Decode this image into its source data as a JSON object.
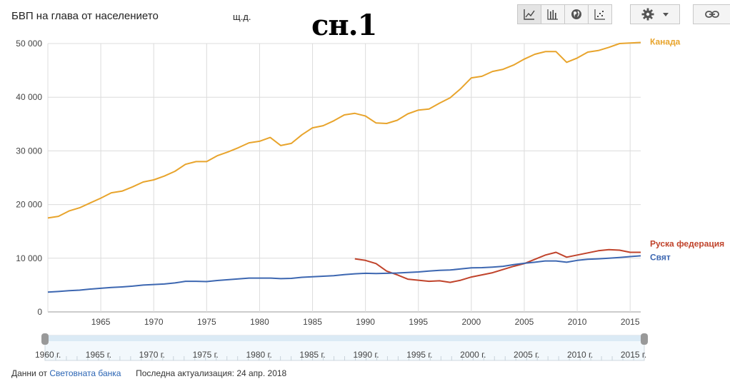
{
  "header": {
    "title": "БВП на глава от населението",
    "unit": "щ.д.",
    "figure_label": "сн.1"
  },
  "toolbar": {
    "buttons": [
      {
        "icon": "line-chart-icon",
        "active": true
      },
      {
        "icon": "bar-chart-icon",
        "active": false
      },
      {
        "icon": "globe-icon",
        "active": false
      },
      {
        "icon": "scatter-chart-icon",
        "active": false
      }
    ],
    "settings_icon": "gear-icon",
    "link_icon": "link-icon"
  },
  "footer": {
    "source_prefix": "Данни от",
    "source_link": "Световната банка",
    "updated": "Последна актуализация: 24 апр. 2018"
  },
  "chart_data": {
    "type": "line",
    "title": "БВП на глава от населението",
    "xlabel": "",
    "ylabel": "щ.д.",
    "xlim": [
      1960,
      2016
    ],
    "ylim": [
      0,
      50000
    ],
    "y_ticks": [
      0,
      10000,
      20000,
      30000,
      40000,
      50000
    ],
    "y_tick_labels": [
      "0",
      "10 000",
      "20 000",
      "30 000",
      "40 000",
      "50 000"
    ],
    "x_ticks": [
      1965,
      1970,
      1975,
      1980,
      1985,
      1990,
      1995,
      2000,
      2005,
      2010,
      2015
    ],
    "x_tick_labels": [
      "1965",
      "1970",
      "1975",
      "1980",
      "1985",
      "1990",
      "1995",
      "2000",
      "2005",
      "2010",
      "2015"
    ],
    "grid": true,
    "legend": "right-end labels",
    "series": [
      {
        "name": "Канада",
        "color": "#e8a42c",
        "x": [
          1960,
          1961,
          1962,
          1963,
          1964,
          1965,
          1966,
          1967,
          1968,
          1969,
          1970,
          1971,
          1972,
          1973,
          1974,
          1975,
          1976,
          1977,
          1978,
          1979,
          1980,
          1981,
          1982,
          1983,
          1984,
          1985,
          1986,
          1987,
          1988,
          1989,
          1990,
          1991,
          1992,
          1993,
          1994,
          1995,
          1996,
          1997,
          1998,
          1999,
          2000,
          2001,
          2002,
          2003,
          2004,
          2005,
          2006,
          2007,
          2008,
          2009,
          2010,
          2011,
          2012,
          2013,
          2014,
          2015,
          2016
        ],
        "y": [
          17500,
          17800,
          18800,
          19400,
          20300,
          21200,
          22200,
          22500,
          23300,
          24200,
          24600,
          25300,
          26200,
          27500,
          28000,
          28000,
          29100,
          29800,
          30600,
          31500,
          31800,
          32500,
          31000,
          31400,
          33000,
          34300,
          34700,
          35600,
          36700,
          37000,
          36500,
          35200,
          35100,
          35700,
          36900,
          37600,
          37800,
          38900,
          39900,
          41600,
          43600,
          43900,
          44800,
          45200,
          46000,
          47100,
          48000,
          48500,
          48500,
          46500,
          47300,
          48400,
          48700,
          49300,
          50000,
          50100,
          50200
        ]
      },
      {
        "name": "Руска федерация",
        "color": "#c0432b",
        "x": [
          1989,
          1990,
          1991,
          1992,
          1993,
          1994,
          1995,
          1996,
          1997,
          1998,
          1999,
          2000,
          2001,
          2002,
          2003,
          2004,
          2005,
          2006,
          2007,
          2008,
          2009,
          2010,
          2011,
          2012,
          2013,
          2014,
          2015,
          2016
        ],
        "y": [
          9900,
          9600,
          9000,
          7600,
          6900,
          6100,
          5900,
          5700,
          5800,
          5500,
          5900,
          6500,
          6900,
          7300,
          7900,
          8500,
          9000,
          9800,
          10600,
          11100,
          10200,
          10600,
          11000,
          11400,
          11600,
          11500,
          11100,
          11100
        ]
      },
      {
        "name": "Свят",
        "color": "#3d67b1",
        "x": [
          1960,
          1961,
          1962,
          1963,
          1964,
          1965,
          1966,
          1967,
          1968,
          1969,
          1970,
          1971,
          1972,
          1973,
          1974,
          1975,
          1976,
          1977,
          1978,
          1979,
          1980,
          1981,
          1982,
          1983,
          1984,
          1985,
          1986,
          1987,
          1988,
          1989,
          1990,
          1991,
          1992,
          1993,
          1994,
          1995,
          1996,
          1997,
          1998,
          1999,
          2000,
          2001,
          2002,
          2003,
          2004,
          2005,
          2006,
          2007,
          2008,
          2009,
          2010,
          2011,
          2012,
          2013,
          2014,
          2015,
          2016
        ],
        "y": [
          3700,
          3800,
          3950,
          4050,
          4250,
          4400,
          4550,
          4650,
          4800,
          5000,
          5100,
          5200,
          5400,
          5700,
          5700,
          5650,
          5850,
          6000,
          6150,
          6300,
          6300,
          6300,
          6200,
          6250,
          6450,
          6550,
          6650,
          6750,
          6950,
          7100,
          7200,
          7150,
          7200,
          7250,
          7350,
          7450,
          7600,
          7750,
          7800,
          8000,
          8200,
          8250,
          8350,
          8500,
          8800,
          9050,
          9250,
          9500,
          9500,
          9250,
          9600,
          9800,
          9900,
          10000,
          10150,
          10300,
          10450
        ]
      }
    ],
    "range_selector": {
      "labels": [
        "1960 г.",
        "1965 г.",
        "1970 г.",
        "1975 г.",
        "1980 г.",
        "1985 г.",
        "1990 г.",
        "1995 г.",
        "2000 г.",
        "2005 г.",
        "2010 г.",
        "2015 г."
      ],
      "start": 1960,
      "end": 2016
    }
  }
}
